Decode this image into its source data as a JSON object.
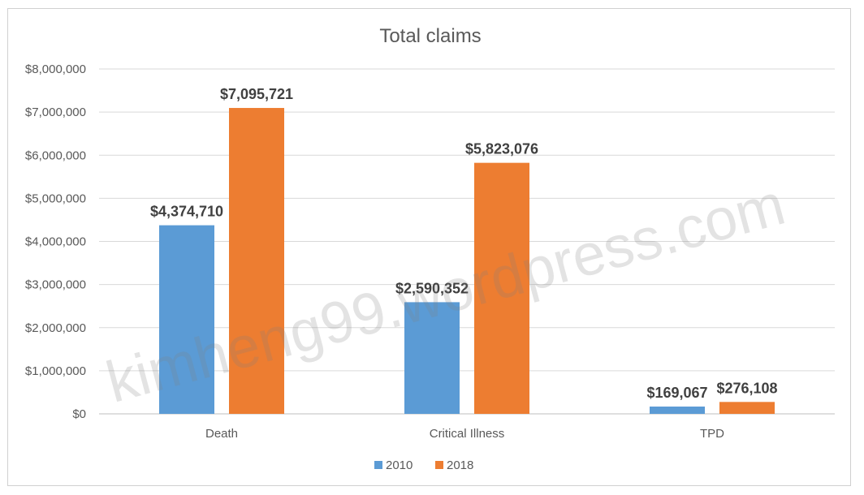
{
  "chart_data": {
    "type": "bar",
    "title": "Total claims",
    "categories": [
      "Death",
      "Critical Illness",
      "TPD"
    ],
    "series": [
      {
        "name": "2010",
        "color": "#5B9BD5",
        "values": [
          4374710,
          2590352,
          169067
        ],
        "labels": [
          "$4,374,710",
          "$2,590,352",
          "$169,067"
        ]
      },
      {
        "name": "2018",
        "color": "#ED7D31",
        "values": [
          7095721,
          5823076,
          276108
        ],
        "labels": [
          "$7,095,721",
          "$5,823,076",
          "$276,108"
        ]
      }
    ],
    "ylim": [
      0,
      8000000
    ],
    "yticks": [
      0,
      1000000,
      2000000,
      3000000,
      4000000,
      5000000,
      6000000,
      7000000,
      8000000
    ],
    "ytick_labels": [
      "$0",
      "$1,000,000",
      "$2,000,000",
      "$3,000,000",
      "$4,000,000",
      "$5,000,000",
      "$6,000,000",
      "$7,000,000",
      "$8,000,000"
    ],
    "xlabel": "",
    "ylabel": "",
    "grid": true,
    "legend": "bottom"
  },
  "watermark": "kimheng99.wordpress.com"
}
